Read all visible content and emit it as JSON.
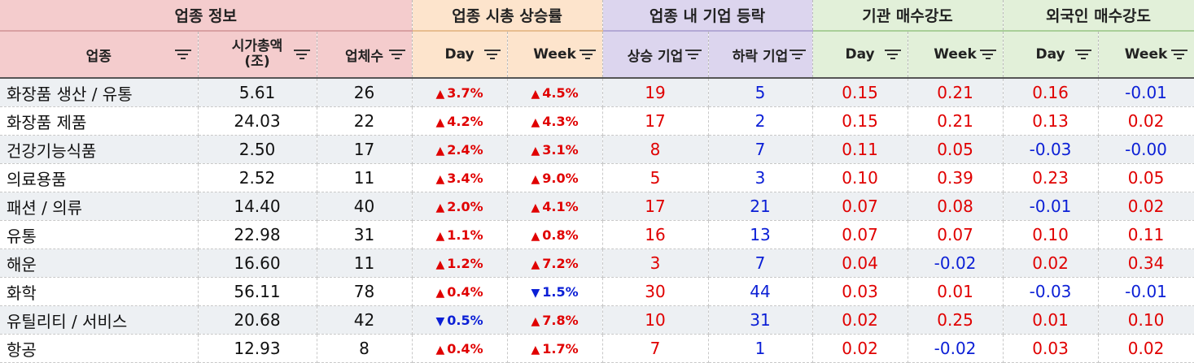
{
  "groups": {
    "info": "업종 정보",
    "mcap": "업종 시총 상승률",
    "counts": "업종 내 기업 등락",
    "inst": "기관 매수강도",
    "foreign": "외국인 매수강도"
  },
  "columns": {
    "sector": "업종",
    "mcap_line1": "시가총액",
    "mcap_line2": "(조)",
    "firms": "업체수",
    "mcap_day": "Day",
    "mcap_week": "Week",
    "up": "상승 기업",
    "down": "하락 기업",
    "inst_day": "Day",
    "inst_week": "Week",
    "frgn_day": "Day",
    "frgn_week": "Week"
  },
  "icons": {
    "filter": "filter-icon",
    "up": "triangle-up-icon",
    "down": "triangle-down-icon"
  },
  "colors": {
    "positive": "#e00000",
    "negative": "#0b1fd6"
  },
  "rows": [
    {
      "sector": "화장품 생산 / 유통",
      "mcap": "5.61",
      "firms": "26",
      "day_dir": "up",
      "day": "3.7%",
      "week_dir": "up",
      "week": "4.5%",
      "up": "19",
      "down": "5",
      "inst_day": "0.15",
      "inst_week": "0.21",
      "frgn_day": "0.16",
      "frgn_week": "-0.01"
    },
    {
      "sector": "화장품 제품",
      "mcap": "24.03",
      "firms": "22",
      "day_dir": "up",
      "day": "4.2%",
      "week_dir": "up",
      "week": "4.3%",
      "up": "17",
      "down": "2",
      "inst_day": "0.15",
      "inst_week": "0.21",
      "frgn_day": "0.13",
      "frgn_week": "0.02"
    },
    {
      "sector": "건강기능식품",
      "mcap": "2.50",
      "firms": "17",
      "day_dir": "up",
      "day": "2.4%",
      "week_dir": "up",
      "week": "3.1%",
      "up": "8",
      "down": "7",
      "inst_day": "0.11",
      "inst_week": "0.05",
      "frgn_day": "-0.03",
      "frgn_week": "-0.00"
    },
    {
      "sector": "의료용품",
      "mcap": "2.52",
      "firms": "11",
      "day_dir": "up",
      "day": "3.4%",
      "week_dir": "up",
      "week": "9.0%",
      "up": "5",
      "down": "3",
      "inst_day": "0.10",
      "inst_week": "0.39",
      "frgn_day": "0.23",
      "frgn_week": "0.05"
    },
    {
      "sector": "패션 / 의류",
      "mcap": "14.40",
      "firms": "40",
      "day_dir": "up",
      "day": "2.0%",
      "week_dir": "up",
      "week": "4.1%",
      "up": "17",
      "down": "21",
      "inst_day": "0.07",
      "inst_week": "0.08",
      "frgn_day": "-0.01",
      "frgn_week": "0.02"
    },
    {
      "sector": "유통",
      "mcap": "22.98",
      "firms": "31",
      "day_dir": "up",
      "day": "1.1%",
      "week_dir": "up",
      "week": "0.8%",
      "up": "16",
      "down": "13",
      "inst_day": "0.07",
      "inst_week": "0.07",
      "frgn_day": "0.10",
      "frgn_week": "0.11"
    },
    {
      "sector": "해운",
      "mcap": "16.60",
      "firms": "11",
      "day_dir": "up",
      "day": "1.2%",
      "week_dir": "up",
      "week": "7.2%",
      "up": "3",
      "down": "7",
      "inst_day": "0.04",
      "inst_week": "-0.02",
      "frgn_day": "0.02",
      "frgn_week": "0.34"
    },
    {
      "sector": "화학",
      "mcap": "56.11",
      "firms": "78",
      "day_dir": "up",
      "day": "0.4%",
      "week_dir": "down",
      "week": "1.5%",
      "up": "30",
      "down": "44",
      "inst_day": "0.03",
      "inst_week": "0.01",
      "frgn_day": "-0.03",
      "frgn_week": "-0.01"
    },
    {
      "sector": "유틸리티 / 서비스",
      "mcap": "20.68",
      "firms": "42",
      "day_dir": "down",
      "day": "0.5%",
      "week_dir": "up",
      "week": "7.8%",
      "up": "10",
      "down": "31",
      "inst_day": "0.02",
      "inst_week": "0.25",
      "frgn_day": "0.01",
      "frgn_week": "0.10"
    },
    {
      "sector": "항공",
      "mcap": "12.93",
      "firms": "8",
      "day_dir": "up",
      "day": "0.4%",
      "week_dir": "up",
      "week": "1.7%",
      "up": "7",
      "down": "1",
      "inst_day": "0.02",
      "inst_week": "-0.02",
      "frgn_day": "0.03",
      "frgn_week": "0.02"
    }
  ]
}
